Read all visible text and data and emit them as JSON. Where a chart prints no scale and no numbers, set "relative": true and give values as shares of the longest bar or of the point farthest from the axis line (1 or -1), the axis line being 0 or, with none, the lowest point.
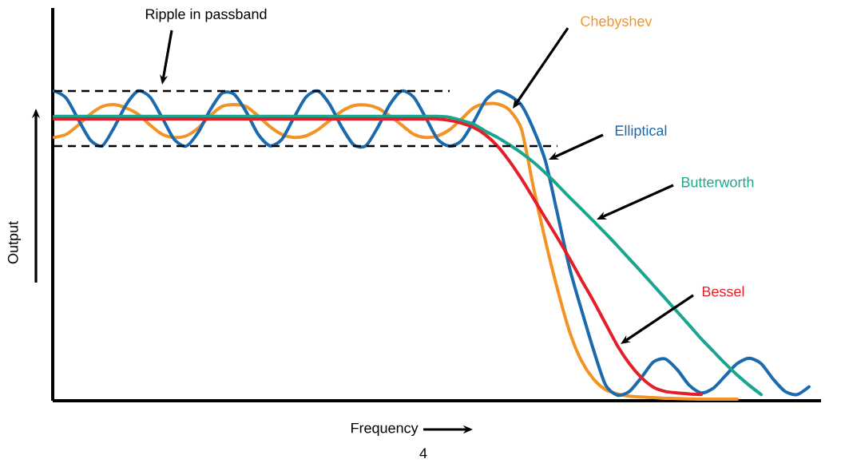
{
  "chart_data": {
    "type": "line",
    "relative": true,
    "xlabel": "Frequency",
    "ylabel": "Output",
    "annotations": [
      "Ripple in passband",
      "4"
    ],
    "categories": [
      null,
      null,
      null,
      null,
      null,
      null,
      null,
      null,
      null,
      null,
      null,
      null,
      null,
      null,
      null,
      null,
      null,
      null,
      null,
      null,
      null,
      null,
      null,
      null,
      null,
      null,
      null,
      null,
      null,
      null,
      null,
      null,
      null,
      null,
      null,
      null,
      null,
      null,
      null,
      null,
      null,
      null,
      null,
      null,
      null,
      null,
      null,
      null,
      null,
      null,
      null,
      null,
      null,
      null,
      null,
      null,
      null,
      null,
      null,
      null,
      null,
      null,
      null,
      null
    ],
    "series": [
      {
        "name": "Chebyshev",
        "color": "#f39325",
        "values": [
          0.85,
          0.86,
          0.89,
          0.925,
          0.95,
          0.956,
          0.945,
          0.925,
          0.89,
          0.86,
          0.85,
          0.855,
          0.88,
          0.92,
          0.95,
          0.956,
          0.95,
          0.92,
          0.885,
          0.86,
          0.85,
          0.855,
          0.875,
          0.905,
          0.935,
          0.953,
          0.955,
          0.945,
          0.92,
          0.89,
          0.86,
          0.85,
          0.855,
          0.875,
          0.91,
          0.946,
          0.958,
          0.958,
          0.938,
          0.876,
          0.688,
          0.515,
          0.36,
          0.224,
          0.129,
          0.07,
          0.036,
          0.022,
          0.015,
          0.012,
          0.01,
          0.008,
          0.007,
          0.006,
          0.005,
          0.005,
          0.005,
          0.005,
          null,
          null,
          null,
          null,
          null,
          null
        ]
      },
      {
        "name": "Elliptical",
        "color": "#1a6aad",
        "values": [
          1.0,
          0.977,
          0.908,
          0.842,
          0.823,
          0.883,
          0.956,
          1.0,
          0.98,
          0.914,
          0.844,
          0.822,
          0.866,
          0.938,
          0.993,
          0.99,
          0.934,
          0.861,
          0.823,
          0.844,
          0.914,
          0.98,
          1.0,
          0.956,
          0.883,
          0.826,
          0.823,
          0.883,
          0.956,
          1.0,
          0.98,
          0.914,
          0.844,
          0.822,
          0.84,
          0.9,
          0.97,
          1.0,
          0.985,
          0.954,
          0.876,
          0.773,
          0.603,
          0.43,
          0.294,
          0.165,
          0.052,
          0.018,
          0.03,
          0.075,
          0.125,
          0.135,
          0.1,
          0.05,
          0.025,
          0.04,
          0.08,
          0.12,
          0.137,
          0.12,
          0.07,
          0.03,
          0.02,
          0.045
        ]
      },
      {
        "name": "Butterworth",
        "color": "#1aa58f",
        "values": [
          0.918,
          0.918,
          0.918,
          0.918,
          0.918,
          0.918,
          0.918,
          0.918,
          0.918,
          0.918,
          0.918,
          0.918,
          0.918,
          0.918,
          0.918,
          0.918,
          0.918,
          0.918,
          0.918,
          0.918,
          0.918,
          0.918,
          0.918,
          0.918,
          0.918,
          0.918,
          0.918,
          0.918,
          0.918,
          0.918,
          0.918,
          0.918,
          0.918,
          0.915,
          0.905,
          0.893,
          0.87,
          0.85,
          0.826,
          0.8,
          0.77,
          0.735,
          0.697,
          0.657,
          0.619,
          0.58,
          0.541,
          0.5,
          0.458,
          0.416,
          0.373,
          0.33,
          0.287,
          0.244,
          0.2,
          0.16,
          0.12,
          0.083,
          0.05,
          0.02,
          null,
          null,
          null,
          null
        ]
      },
      {
        "name": "Bessel",
        "color": "#e3202a",
        "values": [
          0.91,
          0.91,
          0.91,
          0.91,
          0.91,
          0.91,
          0.91,
          0.91,
          0.91,
          0.91,
          0.91,
          0.91,
          0.91,
          0.91,
          0.91,
          0.91,
          0.91,
          0.91,
          0.91,
          0.91,
          0.91,
          0.91,
          0.91,
          0.91,
          0.91,
          0.91,
          0.91,
          0.91,
          0.91,
          0.91,
          0.91,
          0.91,
          0.91,
          0.905,
          0.896,
          0.882,
          0.858,
          0.822,
          0.773,
          0.716,
          0.653,
          0.589,
          0.526,
          0.46,
          0.39,
          0.322,
          0.25,
          0.178,
          0.12,
          0.075,
          0.044,
          0.03,
          0.025,
          0.022,
          0.02,
          null,
          null,
          null,
          null,
          null,
          null,
          null,
          null,
          null
        ]
      },
      {
        "color": "#000000",
        "line_style": "dashed",
        "values": [
          1.0,
          1.0,
          1.0,
          1.0,
          1.0,
          1.0,
          1.0,
          1.0,
          1.0,
          1.0,
          1.0,
          1.0,
          1.0,
          1.0,
          1.0,
          1.0,
          1.0,
          1.0,
          1.0,
          1.0,
          1.0,
          1.0,
          1.0,
          1.0,
          1.0,
          1.0,
          1.0,
          1.0,
          1.0,
          1.0,
          1.0,
          1.0,
          1.0,
          1.0,
          null,
          null,
          null,
          null,
          null,
          null,
          null,
          null,
          null,
          null,
          null,
          null,
          null,
          null,
          null,
          null,
          null,
          null,
          null,
          null,
          null,
          null,
          null,
          null,
          null,
          null,
          null,
          null,
          null,
          null
        ]
      },
      {
        "color": "#000000",
        "line_style": "dashed",
        "values": [
          0.822,
          0.822,
          0.822,
          0.822,
          0.822,
          0.822,
          0.822,
          0.822,
          0.822,
          0.822,
          0.822,
          0.822,
          0.822,
          0.822,
          0.822,
          0.822,
          0.822,
          0.822,
          0.822,
          0.822,
          0.822,
          0.822,
          0.822,
          0.822,
          0.822,
          0.822,
          0.822,
          0.822,
          0.822,
          0.822,
          0.822,
          0.822,
          0.822,
          0.822,
          0.822,
          0.822,
          0.822,
          0.822,
          0.822,
          0.822,
          0.822,
          0.822,
          0.822,
          null,
          null,
          null,
          null,
          null,
          null,
          null,
          null,
          null,
          null,
          null,
          null,
          null,
          null,
          null,
          null,
          null,
          null,
          null,
          null,
          null
        ]
      }
    ]
  }
}
